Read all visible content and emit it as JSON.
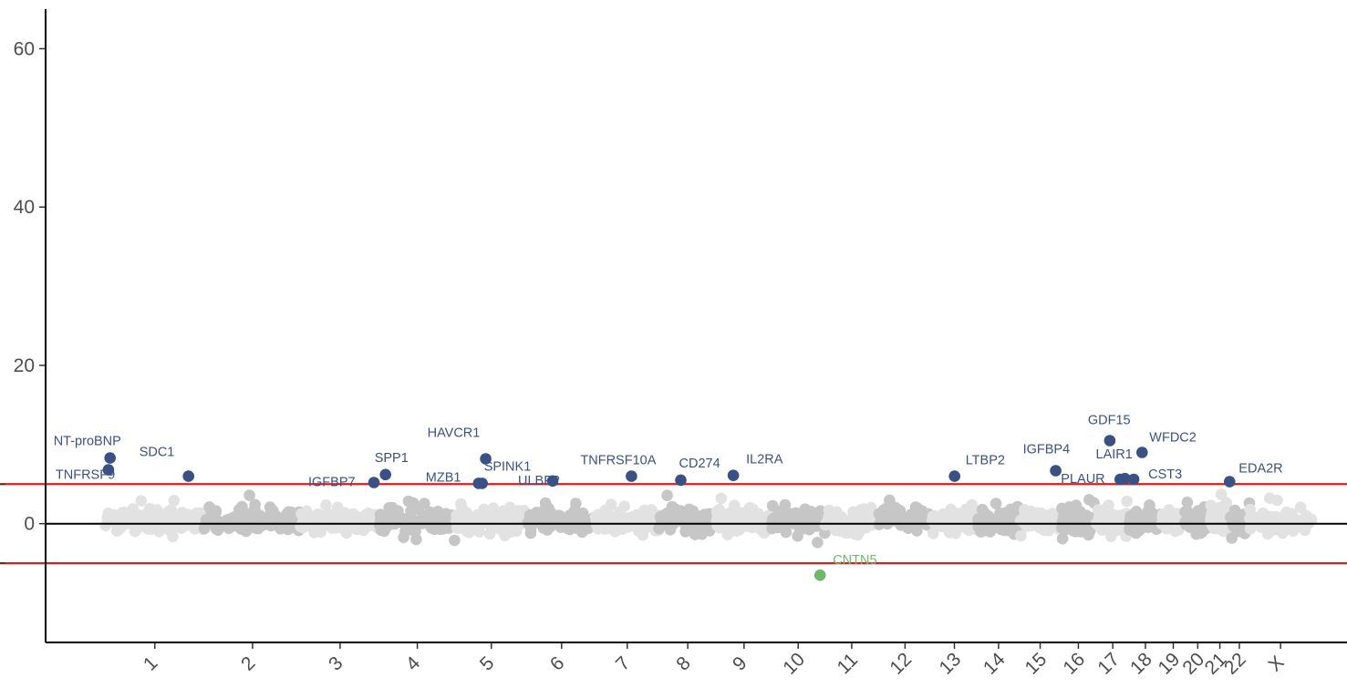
{
  "chart_data": {
    "type": "scatter",
    "title": "",
    "xlabel": "",
    "ylabel": "",
    "ylim": [
      -15,
      65
    ],
    "yticks": [
      0,
      20,
      40,
      60
    ],
    "grid": false,
    "legend": "none",
    "threshold_lines": [
      5,
      -5
    ],
    "zero_line": 0,
    "colors": {
      "up": "#3b5184",
      "down": "#6fb86b",
      "threshold": "#d62020",
      "chrom_light": "#e2e2e2",
      "chrom_dark": "#c6c6c6",
      "axis": "#000000"
    },
    "chromosomes": [
      "1",
      "2",
      "3",
      "4",
      "5",
      "6",
      "7",
      "8",
      "9",
      "10",
      "11",
      "12",
      "13",
      "14",
      "15",
      "16",
      "17",
      "18",
      "19",
      "20",
      "21",
      "22",
      "X"
    ],
    "chromosome_spans": [
      [
        0,
        249
      ],
      [
        249,
        491
      ],
      [
        491,
        689
      ],
      [
        689,
        879
      ],
      [
        879,
        1061
      ],
      [
        1061,
        1232
      ],
      [
        1232,
        1391
      ],
      [
        1391,
        1536
      ],
      [
        1536,
        1674
      ],
      [
        1674,
        1808
      ],
      [
        1808,
        1943
      ],
      [
        1943,
        2076
      ],
      [
        2076,
        2191
      ],
      [
        2191,
        2298
      ],
      [
        2298,
        2400
      ],
      [
        2400,
        2490
      ],
      [
        2490,
        2573
      ],
      [
        2573,
        2654
      ],
      [
        2654,
        2713
      ],
      [
        2713,
        2777
      ],
      [
        2777,
        2824
      ],
      [
        2824,
        2875
      ],
      [
        2875,
        3031
      ]
    ],
    "xlim": [
      -150,
      3120
    ],
    "highlighted": [
      {
        "gene": "NT-proBNP",
        "x": 12,
        "y": 8.3,
        "dir": "up"
      },
      {
        "gene": "TNFRSF9",
        "x": 8,
        "y": 6.8,
        "dir": "up"
      },
      {
        "gene": "SDC1",
        "x": 209,
        "y": 6.0,
        "dir": "up"
      },
      {
        "gene": "IGFBP7",
        "x": 675,
        "y": 5.2,
        "dir": "up"
      },
      {
        "gene": "SPP1",
        "x": 704,
        "y": 6.2,
        "dir": "up"
      },
      {
        "gene": "HAVCR1",
        "x": 956,
        "y": 8.2,
        "dir": "up"
      },
      {
        "gene": "MZB1",
        "x": 938,
        "y": 5.1,
        "dir": "up"
      },
      {
        "gene": "SPINK1",
        "x": 947,
        "y": 5.1,
        "dir": "up"
      },
      {
        "gene": "ULBP2",
        "x": 1124,
        "y": 5.4,
        "dir": "up"
      },
      {
        "gene": "TNFRSF10A",
        "x": 1322,
        "y": 6.0,
        "dir": "up"
      },
      {
        "gene": "CD274",
        "x": 1446,
        "y": 5.5,
        "dir": "up"
      },
      {
        "gene": "IL2RA",
        "x": 1578,
        "y": 6.1,
        "dir": "up"
      },
      {
        "gene": "LTBP2",
        "x": 2134,
        "y": 6.0,
        "dir": "up"
      },
      {
        "gene": "IGFBP4",
        "x": 2388,
        "y": 6.7,
        "dir": "up"
      },
      {
        "gene": "PLAUR",
        "x": 2550,
        "y": 5.6,
        "dir": "up"
      },
      {
        "gene": "LAIR1",
        "x": 2562,
        "y": 5.7,
        "dir": "up"
      },
      {
        "gene": "GDF15",
        "x": 2524,
        "y": 10.5,
        "dir": "up"
      },
      {
        "gene": "WFDC2",
        "x": 2605,
        "y": 9.0,
        "dir": "up"
      },
      {
        "gene": "CST3",
        "x": 2584,
        "y": 5.6,
        "dir": "up"
      },
      {
        "gene": "EDA2R",
        "x": 2825,
        "y": 5.3,
        "dir": "up"
      },
      {
        "gene": "CNTN5",
        "x": 1796,
        "y": -6.5,
        "dir": "down"
      }
    ]
  }
}
